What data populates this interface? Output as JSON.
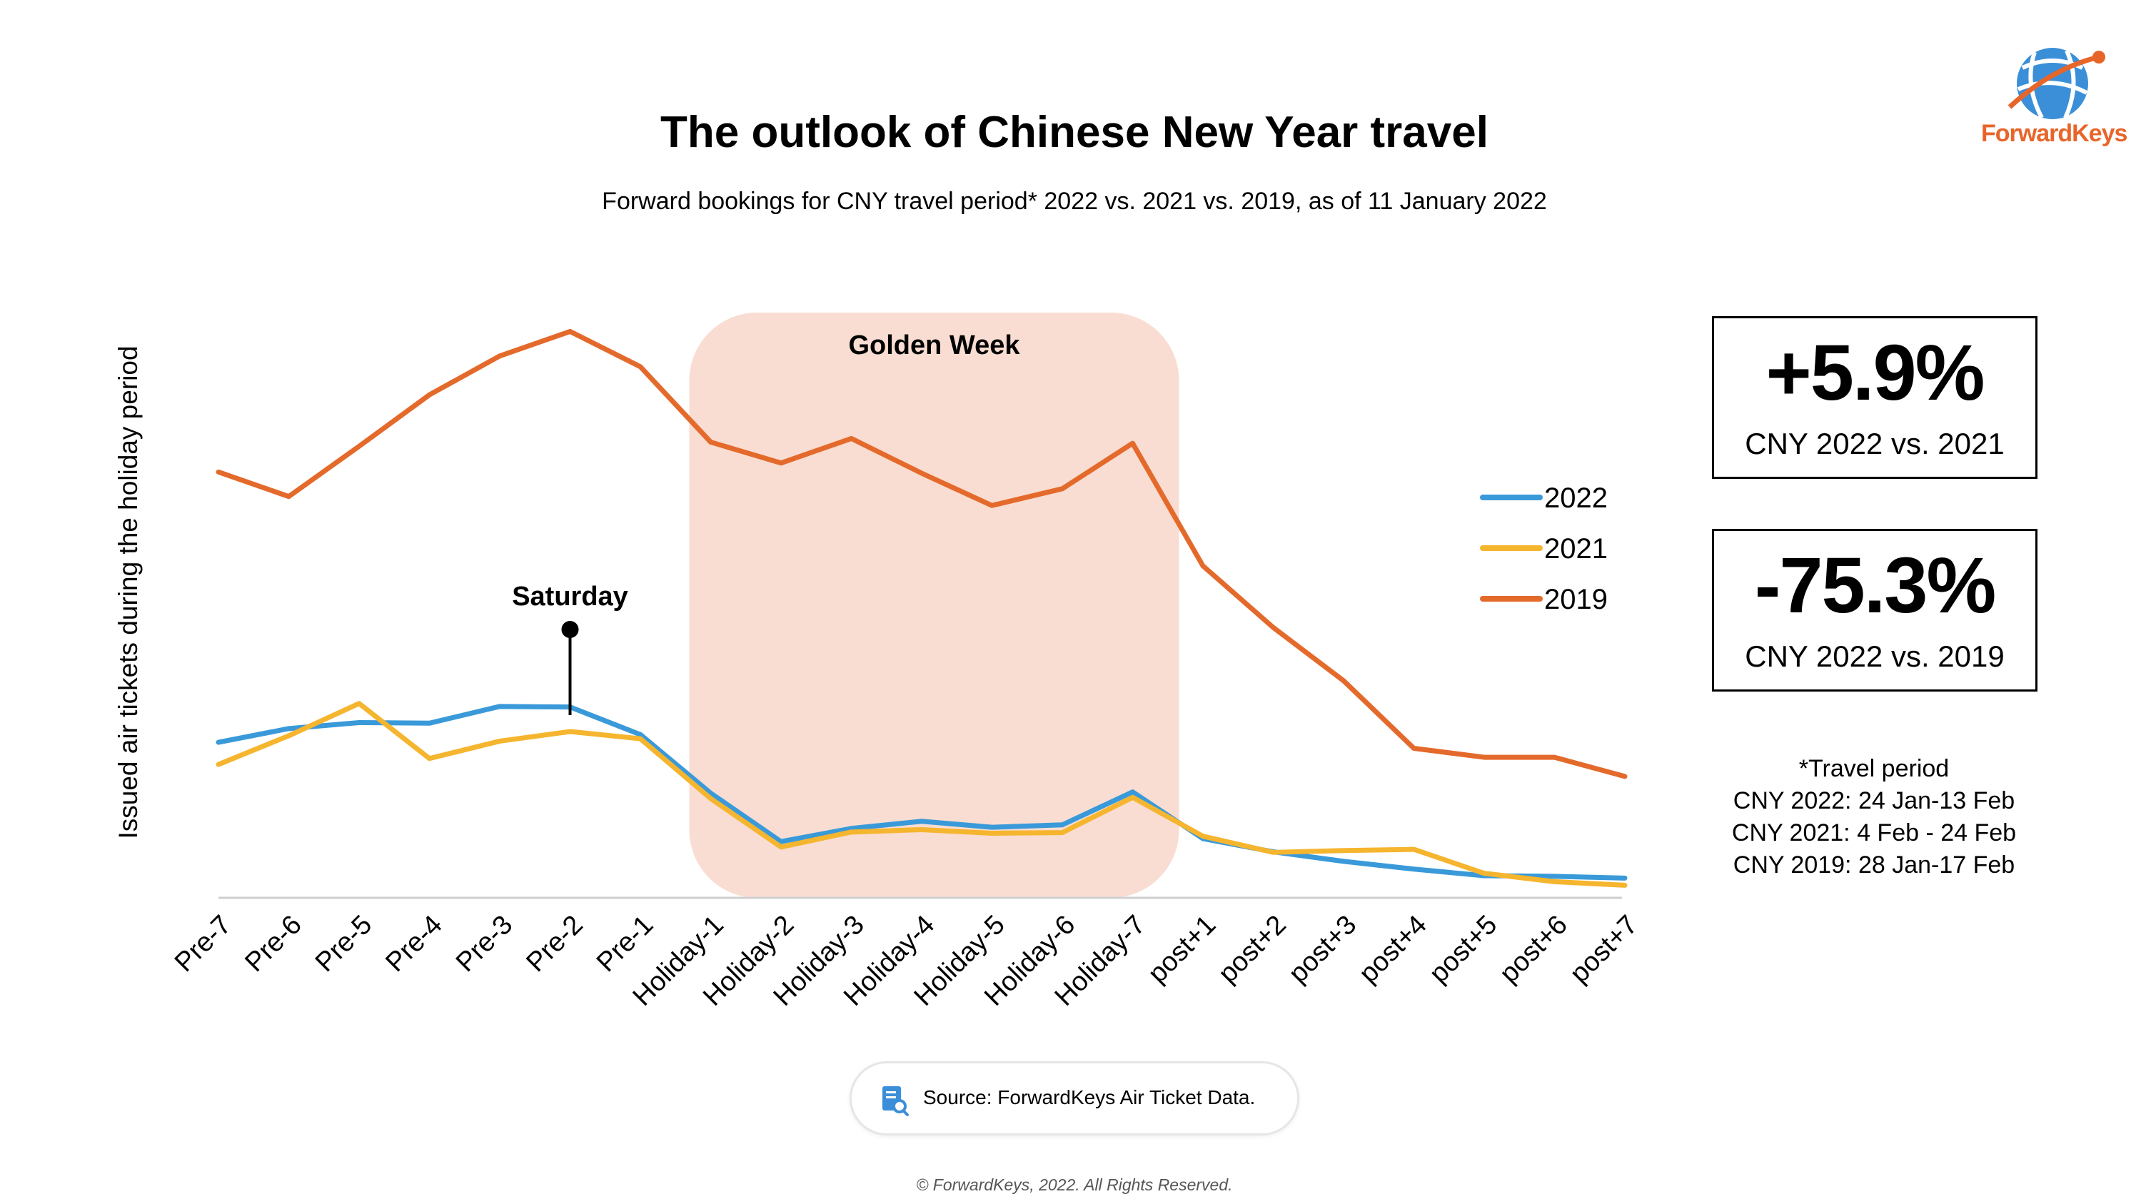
{
  "title": "The outlook of Chinese New Year travel",
  "subtitle": "Forward bookings for CNY travel period* 2022 vs. 2021 vs. 2019, as of 11 January 2022",
  "logo": {
    "name": "ForwardKeys",
    "icon": "globe-logo-icon"
  },
  "colors": {
    "2022": "#3a9ad9",
    "2021": "#f5b52e",
    "2019": "#e46a2c",
    "golden_week": "#f9ddd2"
  },
  "chart_data": {
    "type": "line",
    "ylabel": "Issued air tickets during the holiday period",
    "xlabel": "",
    "categories": [
      "Pre-7",
      "Pre-6",
      "Pre-5",
      "Pre-4",
      "Pre-3",
      "Pre-2",
      "Pre-1",
      "Holiday-1",
      "Holiday-2",
      "Holiday-3",
      "Holiday-4",
      "Holiday-5",
      "Holiday-6",
      "Holiday-7",
      "post+1",
      "post+2",
      "post+3",
      "post+4",
      "post+5",
      "post+6",
      "post+7"
    ],
    "ylim": [
      0,
      100
    ],
    "grid": false,
    "legend_position": "right",
    "series": [
      {
        "name": "2022",
        "values": [
          26.0,
          28.3,
          29.3,
          29.2,
          32.0,
          31.9,
          27.3,
          17.5,
          9.4,
          11.6,
          12.8,
          11.8,
          12.2,
          17.7,
          9.9,
          7.7,
          6.1,
          4.8,
          3.7,
          3.6,
          3.3
        ]
      },
      {
        "name": "2021",
        "values": [
          22.3,
          27.1,
          32.5,
          23.3,
          26.2,
          27.8,
          26.6,
          16.6,
          8.5,
          11.0,
          11.4,
          10.8,
          10.9,
          16.8,
          10.3,
          7.6,
          7.9,
          8.1,
          4.1,
          2.7,
          2.1
        ]
      },
      {
        "name": "2019",
        "values": [
          71.2,
          67.1,
          75.5,
          84.1,
          90.6,
          94.7,
          88.8,
          76.2,
          72.7,
          76.8,
          71.0,
          65.6,
          68.4,
          76.0,
          55.5,
          45.2,
          36.3,
          25.0,
          23.5,
          23.5,
          20.3
        ]
      }
    ],
    "annotations": [
      {
        "label": "Golden Week",
        "from": "Holiday-1",
        "to": "Holiday-7"
      },
      {
        "label": "Saturday",
        "at": "Pre-2"
      }
    ]
  },
  "kpis": [
    {
      "value": "+5.9%",
      "label": "CNY 2022 vs. 2021"
    },
    {
      "value": "-75.3%",
      "label": "CNY 2022 vs. 2019"
    }
  ],
  "notes": [
    "*Travel period",
    "CNY 2022: 24 Jan-13 Feb",
    "CNY 2021: 4 Feb - 24 Feb",
    "CNY 2019: 28 Jan-17 Feb"
  ],
  "source": {
    "icon": "document-search-icon",
    "text": "Source: ForwardKeys Air Ticket Data."
  },
  "copyright": "© ForwardKeys, 2022. All Rights Reserved."
}
